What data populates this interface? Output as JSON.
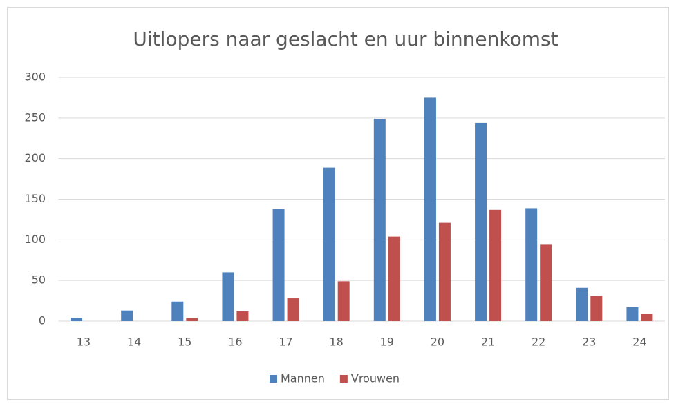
{
  "chart_data": {
    "type": "bar",
    "title": "Uitlopers naar geslacht en uur binnenkomst",
    "categories": [
      "13",
      "14",
      "15",
      "16",
      "17",
      "18",
      "19",
      "20",
      "21",
      "22",
      "23",
      "24"
    ],
    "series": [
      {
        "name": "Mannen",
        "color": "#4f81bd",
        "values": [
          4,
          13,
          24,
          60,
          138,
          189,
          249,
          275,
          244,
          139,
          41,
          17
        ]
      },
      {
        "name": "Vrouwen",
        "color": "#c0504d",
        "values": [
          0,
          0,
          4,
          12,
          28,
          49,
          104,
          121,
          137,
          94,
          31,
          9
        ]
      }
    ],
    "ylim": [
      0,
      300
    ],
    "yticks": [
      0,
      50,
      100,
      150,
      200,
      250,
      300
    ],
    "grid": true,
    "legend": "bottom"
  }
}
